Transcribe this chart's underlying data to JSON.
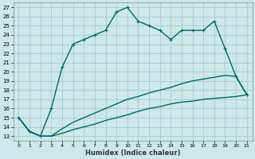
{
  "xlabel": "Humidex (Indice chaleur)",
  "background_color": "#cce8e8",
  "grid_color": "#aacccc",
  "line_color": "#006666",
  "xlim": [
    -0.5,
    21.5
  ],
  "ylim": [
    12.5,
    27.5
  ],
  "x_ticks": [
    0,
    1,
    2,
    3,
    4,
    5,
    6,
    7,
    8,
    9,
    10,
    11,
    12,
    13,
    14,
    15,
    16,
    17,
    18,
    19,
    20,
    21
  ],
  "y_ticks": [
    13,
    14,
    15,
    16,
    17,
    18,
    19,
    20,
    21,
    22,
    23,
    24,
    25,
    26,
    27
  ],
  "line1_x": [
    0,
    1,
    2,
    3,
    4,
    5,
    6,
    7,
    8,
    9,
    10,
    11,
    12,
    13,
    14,
    15,
    16,
    17,
    18,
    19,
    20,
    21
  ],
  "line1_y": [
    15.0,
    13.5,
    13.0,
    13.0,
    13.3,
    13.7,
    14.0,
    14.3,
    14.7,
    15.0,
    15.3,
    15.7,
    16.0,
    16.2,
    16.5,
    16.7,
    16.8,
    17.0,
    17.1,
    17.2,
    17.3,
    17.5
  ],
  "line2_x": [
    0,
    1,
    2,
    3,
    4,
    5,
    6,
    7,
    8,
    9,
    10,
    11,
    12,
    13,
    14,
    15,
    16,
    17,
    18,
    19,
    20,
    21
  ],
  "line2_y": [
    15.0,
    13.5,
    13.0,
    13.0,
    13.8,
    14.5,
    15.0,
    15.5,
    16.0,
    16.5,
    17.0,
    17.3,
    17.7,
    18.0,
    18.3,
    18.7,
    19.0,
    19.2,
    19.4,
    19.6,
    19.5,
    17.5
  ],
  "line3_x": [
    0,
    1,
    2,
    3,
    4,
    5,
    6,
    7,
    8,
    9,
    10,
    11,
    12,
    13,
    14,
    15,
    16,
    17,
    18,
    19,
    20,
    21
  ],
  "line3_y": [
    15.0,
    13.5,
    13.0,
    16.0,
    20.5,
    23.0,
    23.5,
    24.0,
    24.5,
    26.5,
    27.0,
    25.5,
    25.0,
    24.5,
    23.5,
    24.5,
    24.5,
    24.5,
    25.5,
    22.5,
    19.5,
    17.5
  ],
  "linewidth": 1.0,
  "markersize": 3.5,
  "ticksize": 5,
  "xlabel_fontsize": 6,
  "xlabel_fontweight": "bold"
}
